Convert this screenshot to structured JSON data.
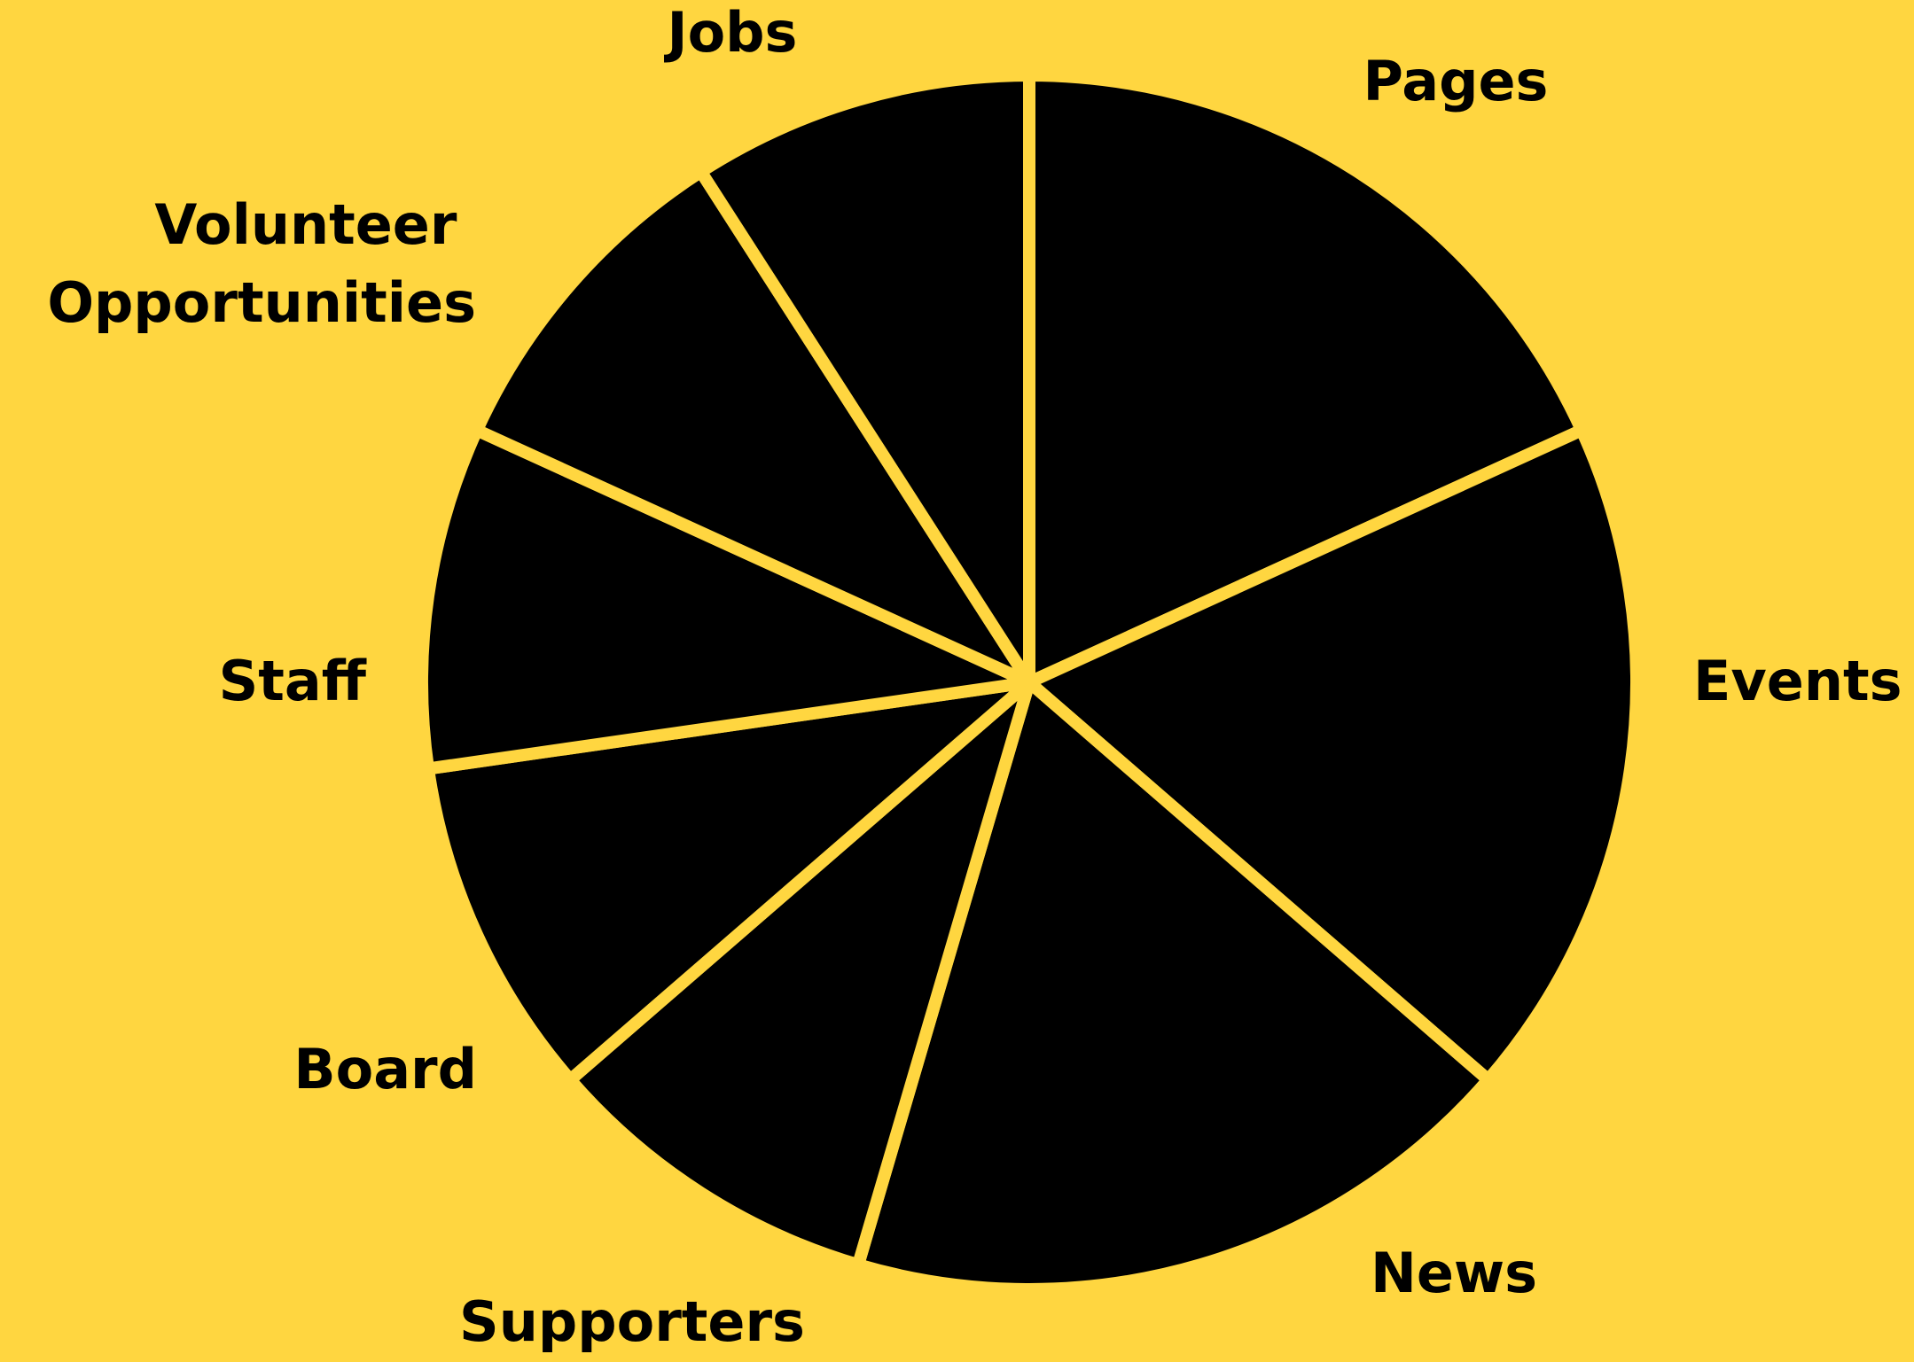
{
  "chart_data": {
    "type": "pie",
    "start_angle_deg": 0,
    "direction": "clockwise",
    "slices": [
      {
        "label": "Pages",
        "value": 2
      },
      {
        "label": "Events",
        "value": 2
      },
      {
        "label": "News",
        "value": 2
      },
      {
        "label": "Supporters",
        "value": 1
      },
      {
        "label": "Board",
        "value": 1
      },
      {
        "label": "Staff",
        "value": 1
      },
      {
        "label": "Volunteer Opportunities",
        "value": 1
      },
      {
        "label": "Jobs",
        "value": 1
      }
    ],
    "colors": {
      "background": "#FFD640",
      "slice_fill": "#000000",
      "separator": "#FFD640",
      "label": "#000000"
    },
    "legend": "none"
  }
}
